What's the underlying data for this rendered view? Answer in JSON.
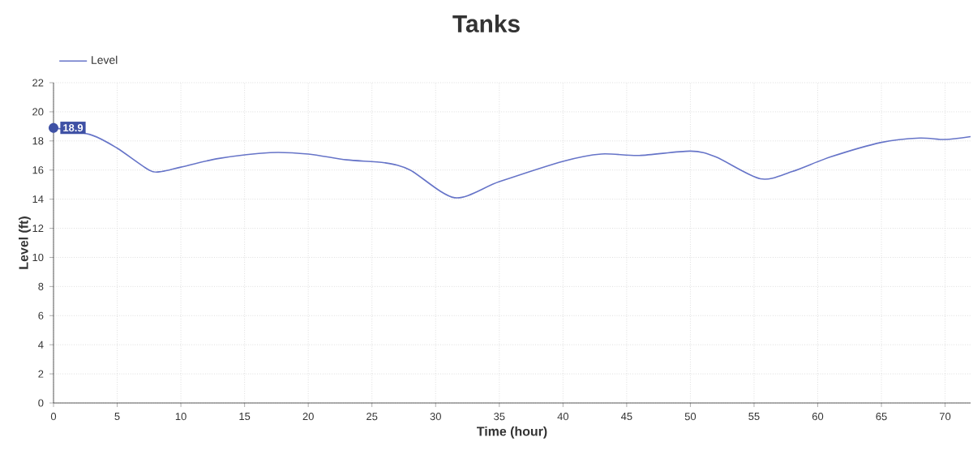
{
  "chart_data": {
    "type": "line",
    "title": "Tanks",
    "xlabel": "Time (hour)",
    "ylabel": "Level (ft)",
    "x": [
      0,
      3,
      5,
      7.5,
      8.5,
      10,
      13,
      17,
      20,
      23,
      26,
      28,
      31.5,
      35,
      40,
      43,
      46,
      50,
      52,
      55.5,
      58,
      61,
      65,
      68,
      70,
      72
    ],
    "series": [
      {
        "name": "Level",
        "color": "#6674c8",
        "values": [
          18.9,
          18.4,
          17.5,
          16.0,
          15.9,
          16.2,
          16.8,
          17.2,
          17.1,
          16.7,
          16.5,
          16.0,
          14.1,
          15.2,
          16.6,
          17.1,
          17.0,
          17.3,
          16.9,
          15.4,
          15.9,
          16.9,
          17.9,
          18.2,
          18.1,
          18.3
        ]
      }
    ],
    "annotations": [
      {
        "text": "18.9",
        "x": 0,
        "y": 18.9
      }
    ],
    "xlim": [
      0,
      72
    ],
    "ylim": [
      0,
      22
    ],
    "xticks": [
      0,
      5,
      10,
      15,
      20,
      25,
      30,
      35,
      40,
      45,
      50,
      55,
      60,
      65,
      70
    ],
    "yticks": [
      0,
      2,
      4,
      6,
      8,
      10,
      12,
      14,
      16,
      18,
      20,
      22
    ],
    "grid": true,
    "legend": "top left",
    "marker": "none",
    "line_style": "solid"
  }
}
